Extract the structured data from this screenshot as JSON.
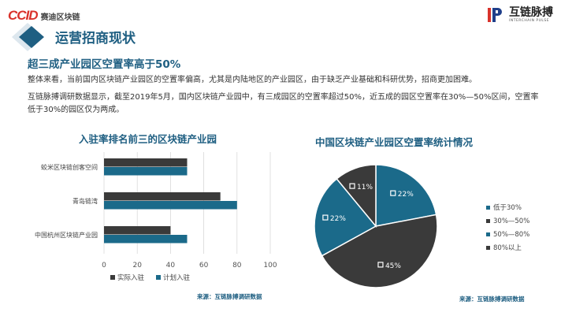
{
  "header": {
    "brand_left_mark": "CCID",
    "brand_left_name": "赛迪区块链",
    "brand_right_name": "互链脉搏",
    "brand_right_en": "INTERCHAIN PULSE",
    "title": "运营招商现状"
  },
  "subtitle": "超三成产业园区空置率高于50%",
  "paragraphs": [
    "整体来看，当前国内区块链产业园区的空置率偏高，尤其是内陆地区的产业园区，由于缺乏产业基础和科研优势，招商更加困难。",
    "互链脉搏调研数据显示，截至2019年5月，国内区块链产业园中，有三成园区的空置率超过50%，近五成的园区空置率在30%—50%区间，空置率低于30%的园区仅为两成。"
  ],
  "colors": {
    "accent": "#1f5f82",
    "dark": "#3a3a3a",
    "teal": "#1b6a8a",
    "brand_red": "#d9322b"
  },
  "chart_data": [
    {
      "type": "bar",
      "title": "入驻率排名前三的区块链产业园",
      "categories": [
        "蛟米区块链创客空间",
        "青岛链湾",
        "中国杭州区块链产业园"
      ],
      "series": [
        {
          "name": "实际入驻",
          "values": [
            50,
            70,
            40
          ],
          "color": "#3a3a3a"
        },
        {
          "name": "计划入驻",
          "values": [
            50,
            80,
            50
          ],
          "color": "#1b6a8a"
        }
      ],
      "xlim": [
        0,
        100
      ],
      "ticks": [
        "0",
        "20",
        "40",
        "60",
        "80",
        "100"
      ],
      "grid": true,
      "legend_position": "bottom",
      "source": "来源：互链脉搏调研数据"
    },
    {
      "type": "pie",
      "title": "中国区块链产业园区空置率统计情况",
      "slices": [
        {
          "label": "低于30%",
          "value": 22,
          "text": "22%",
          "color": "#1b6a8a"
        },
        {
          "label": "30%—50%",
          "value": 45,
          "text": "45%",
          "color": "#3a3a3a"
        },
        {
          "label": "50%—80%",
          "value": 22,
          "text": "22%",
          "color": "#1b6a8a"
        },
        {
          "label": "80%以上",
          "value": 11,
          "text": "11%",
          "color": "#3a3a3a"
        }
      ],
      "legend_position": "right",
      "source": "来源：互链脉搏调研数据"
    }
  ]
}
